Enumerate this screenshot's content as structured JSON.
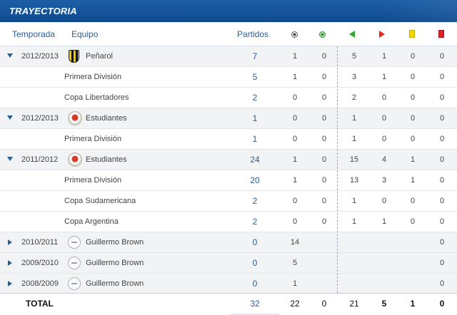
{
  "title": "TRAYECTORIA",
  "headers": {
    "season": "Temporada",
    "team": "Equipo",
    "matches": "Partidos"
  },
  "icons": {
    "goals": "soccer-ball-icon",
    "own_goals": "green-ball-icon",
    "subbed_in": "green-arrow-left-icon",
    "subbed_out": "red-arrow-right-icon",
    "yellow": "yellow-card-icon",
    "red": "red-card-icon"
  },
  "colors": {
    "title_bar": "#0f4a8e",
    "header_text": "#2a5e97",
    "yellow_card": "#f5d800",
    "red_card": "#d8232a",
    "arrow_in": "#2eaa2e",
    "arrow_out": "#e02a1b"
  },
  "rows": [
    {
      "type": "team",
      "expanded": true,
      "season": "2012/2013",
      "name": "Peñarol",
      "crest": "penarol",
      "matches": "7",
      "goals": "1",
      "own": "0",
      "in": "5",
      "out": "1",
      "yellow": "0",
      "red": "0"
    },
    {
      "type": "comp",
      "name": "Primera División",
      "matches": "5",
      "goals": "1",
      "own": "0",
      "in": "3",
      "out": "1",
      "yellow": "0",
      "red": "0"
    },
    {
      "type": "comp",
      "name": "Copa Libertadores",
      "matches": "2",
      "goals": "0",
      "own": "0",
      "in": "2",
      "out": "0",
      "yellow": "0",
      "red": "0"
    },
    {
      "type": "team",
      "expanded": true,
      "season": "2012/2013",
      "name": "Estudiantes",
      "crest": "estudiantes",
      "matches": "1",
      "goals": "0",
      "own": "0",
      "in": "1",
      "out": "0",
      "yellow": "0",
      "red": "0"
    },
    {
      "type": "comp",
      "name": "Primera División",
      "matches": "1",
      "goals": "0",
      "own": "0",
      "in": "1",
      "out": "0",
      "yellow": "0",
      "red": "0"
    },
    {
      "type": "team",
      "expanded": true,
      "season": "2011/2012",
      "name": "Estudiantes",
      "crest": "estudiantes",
      "matches": "24",
      "goals": "1",
      "own": "0",
      "in": "15",
      "out": "4",
      "yellow": "1",
      "red": "0"
    },
    {
      "type": "comp",
      "name": "Primera División",
      "matches": "20",
      "goals": "1",
      "own": "0",
      "in": "13",
      "out": "3",
      "yellow": "1",
      "red": "0"
    },
    {
      "type": "comp",
      "name": "Copa Sudamericana",
      "matches": "2",
      "goals": "0",
      "own": "0",
      "in": "1",
      "out": "0",
      "yellow": "0",
      "red": "0"
    },
    {
      "type": "comp",
      "name": "Copa Argentina",
      "matches": "2",
      "goals": "0",
      "own": "0",
      "in": "1",
      "out": "1",
      "yellow": "0",
      "red": "0"
    },
    {
      "type": "team",
      "expanded": false,
      "season": "2010/2011",
      "name": "Guillermo Brown",
      "crest": "none",
      "matches": "0",
      "goals": "14",
      "own": "",
      "in": "",
      "out": "",
      "yellow": "",
      "red": "0"
    },
    {
      "type": "team",
      "expanded": false,
      "season": "2009/2010",
      "name": "Guillermo Brown",
      "crest": "none",
      "matches": "0",
      "goals": "5",
      "own": "",
      "in": "",
      "out": "",
      "yellow": "",
      "red": "0"
    },
    {
      "type": "team",
      "expanded": false,
      "season": "2008/2009",
      "name": "Guillermo Brown",
      "crest": "none",
      "matches": "0",
      "goals": "1",
      "own": "",
      "in": "",
      "out": "",
      "yellow": "",
      "red": "0"
    }
  ],
  "total": {
    "label": "TOTAL",
    "matches": "32",
    "goals": "22",
    "own": "0",
    "in": "21",
    "out": "5",
    "yellow": "1",
    "red": "0"
  }
}
